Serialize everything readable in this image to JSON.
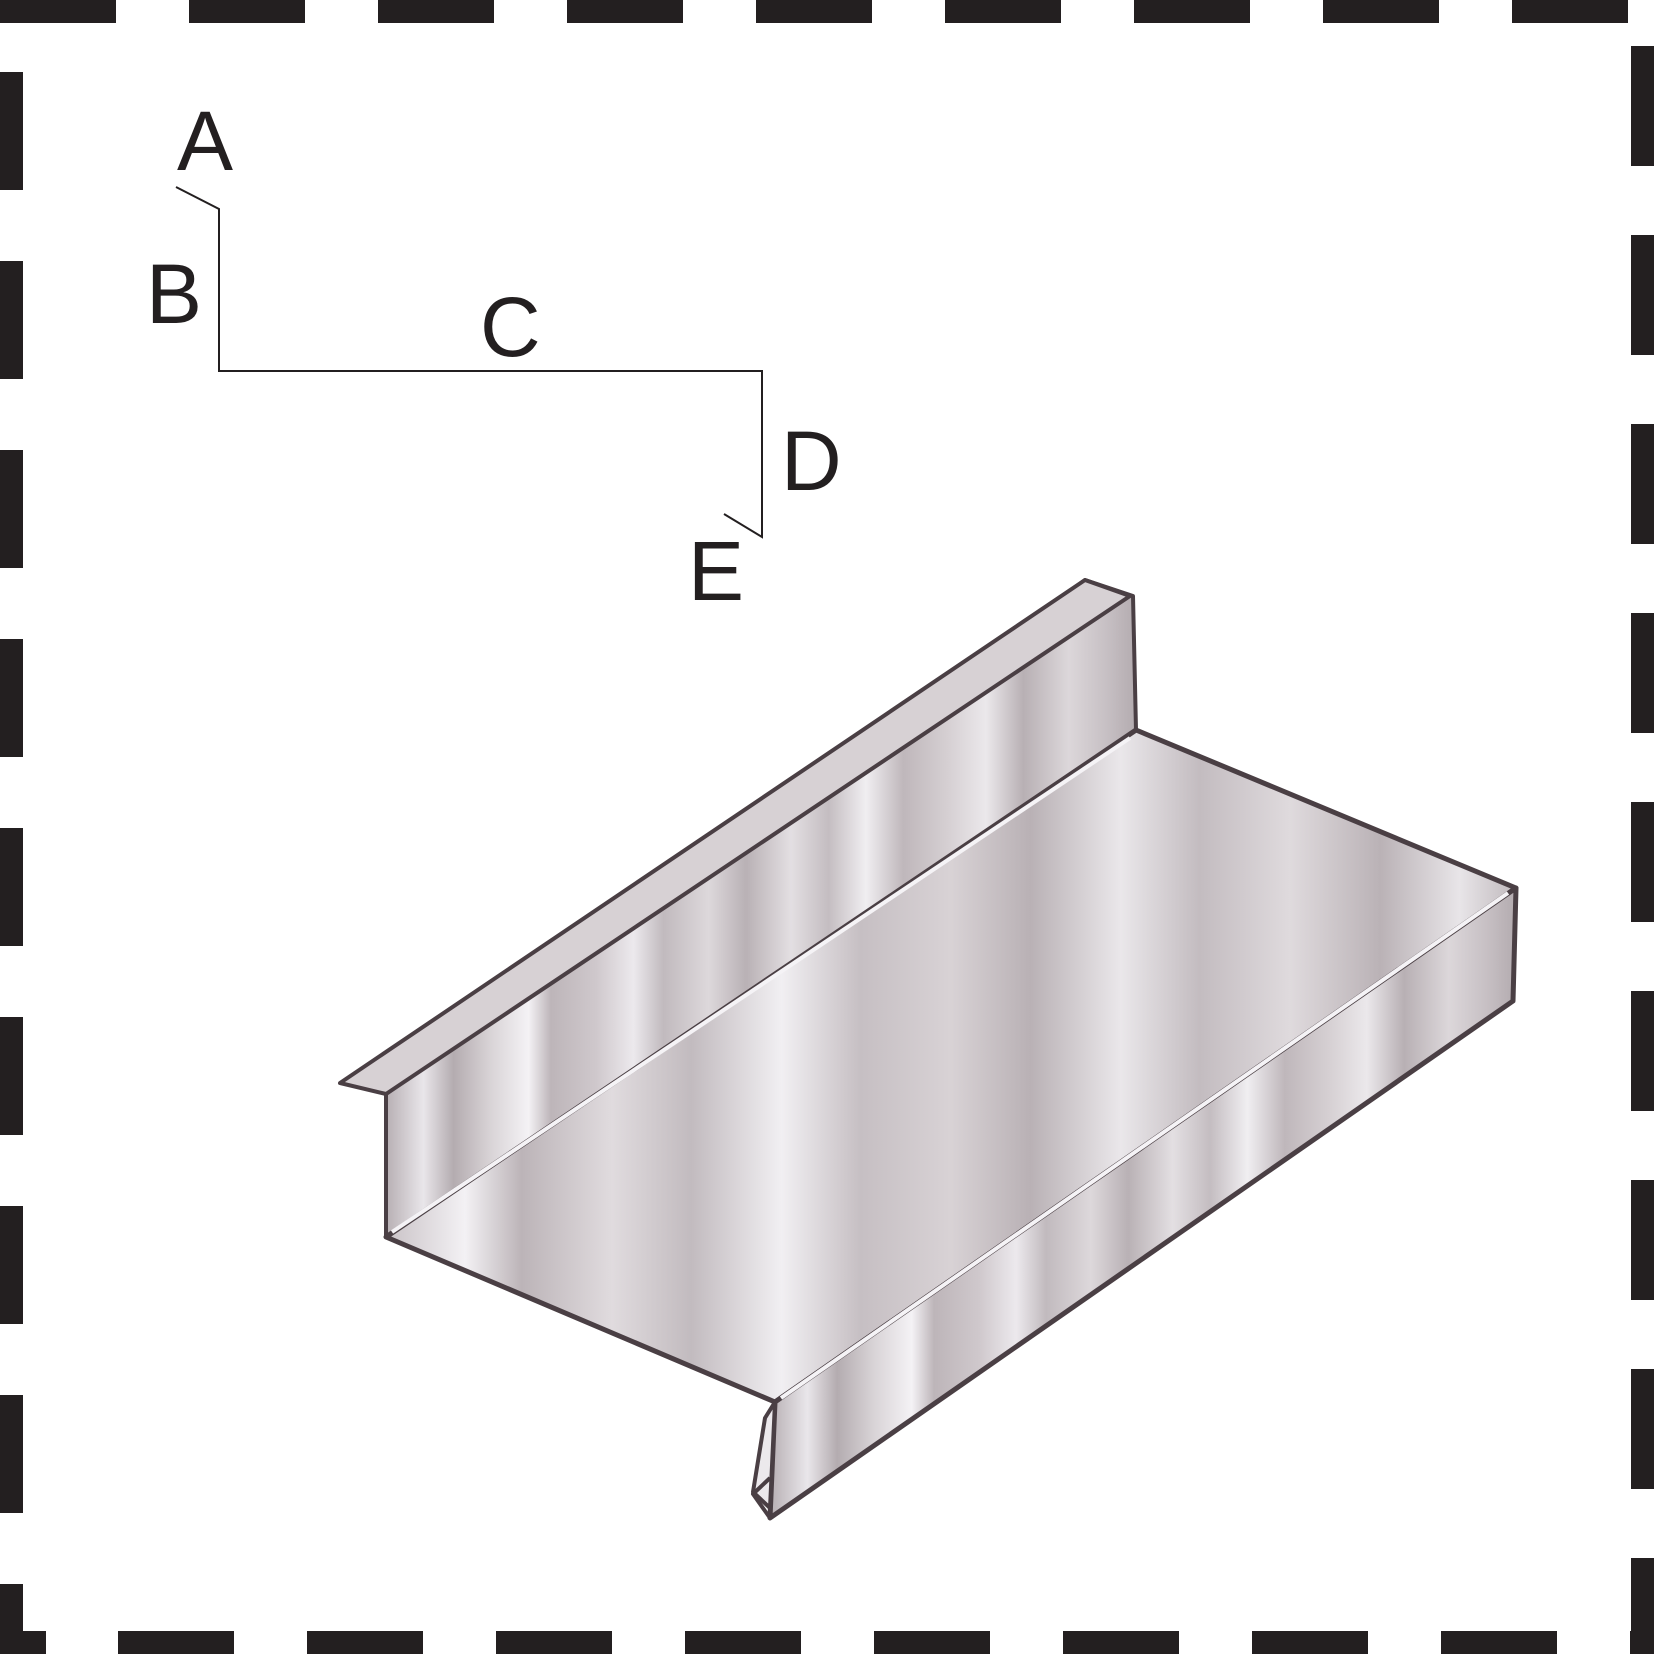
{
  "profile": {
    "segments": [
      {
        "id": "A",
        "label": "A"
      },
      {
        "id": "B",
        "label": "B"
      },
      {
        "id": "C",
        "label": "C"
      },
      {
        "id": "D",
        "label": "D"
      },
      {
        "id": "E",
        "label": "E"
      }
    ]
  },
  "colors": {
    "frame_dash": "#231f20",
    "profile_line": "#231f20",
    "label_text": "#231f20",
    "metal_edge": "#4a3f44",
    "metal_base": "#c9c2c6",
    "metal_highlight": "#f2f0f3",
    "metal_shadow": "#9e9599"
  }
}
